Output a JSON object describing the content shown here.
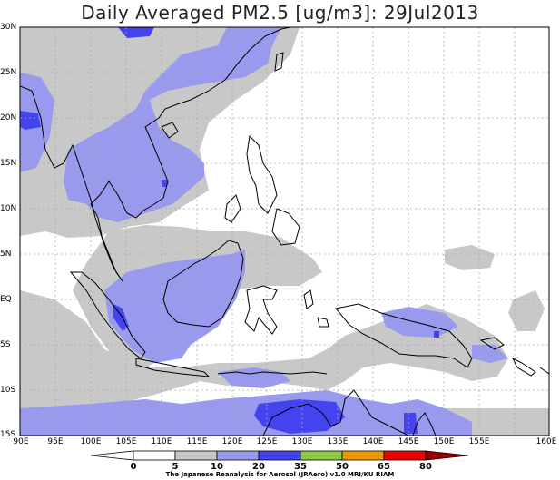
{
  "title": "Daily Averaged PM2.5 [ug/m3]: 29Jul2013",
  "lat_labels": [
    "30N",
    "25N",
    "20N",
    "15N",
    "10N",
    "5N",
    "EQ",
    "5S",
    "10S",
    "15S"
  ],
  "lon_labels": [
    "90E",
    "95E",
    "100E",
    "105E",
    "110E",
    "115E",
    "120E",
    "125E",
    "130E",
    "135E",
    "140E",
    "145E",
    "150E",
    "155E",
    "160E"
  ],
  "colorbar": {
    "labels": [
      "0",
      "5",
      "10",
      "20",
      "35",
      "50",
      "65",
      "80"
    ],
    "colors": [
      "#ffffff",
      "#c8c8c8",
      "#9999ee",
      "#4444ee",
      "#8ccc44",
      "#ee9900",
      "#ee0000",
      "#990000"
    ]
  },
  "colors": {
    "land_outline": "#000000",
    "grid": "#aaaaaa",
    "light_gray": "#c8c8c8",
    "light_blue": "#9999ee",
    "dark_blue": "#4444ee"
  },
  "credit": "The Japanese Reanalysis for Aerosol (JRAero) v1.0 MRI/KU RIAM"
}
